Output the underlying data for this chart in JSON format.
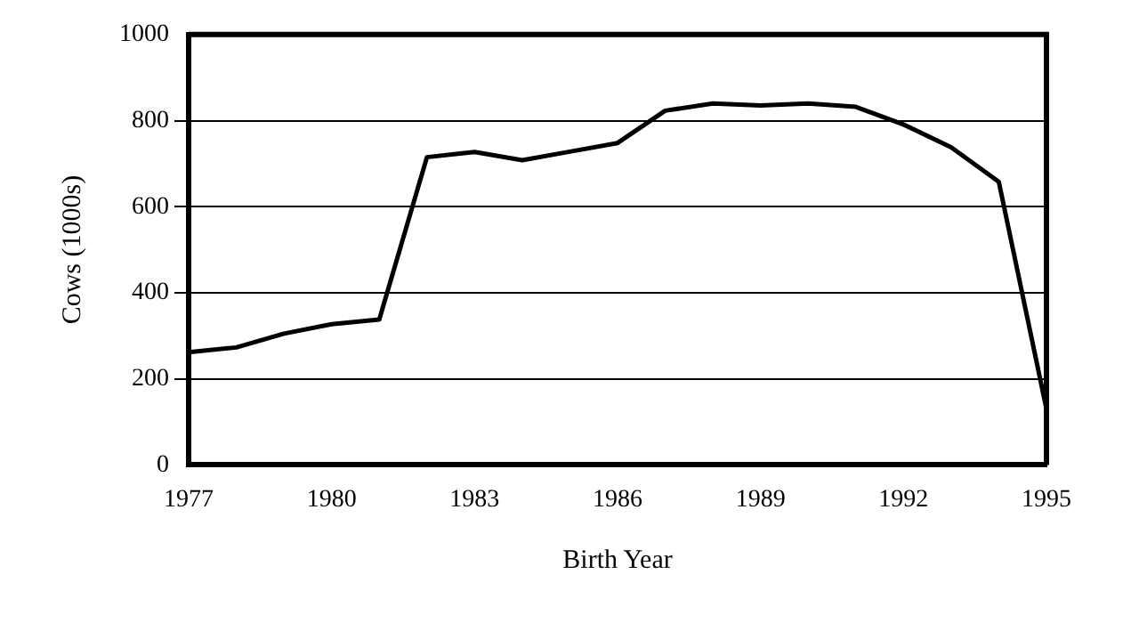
{
  "chart_data": {
    "type": "line",
    "xlabel": "Birth Year",
    "ylabel": "Cows (1000s)",
    "x": [
      1977,
      1978,
      1979,
      1980,
      1981,
      1982,
      1983,
      1984,
      1985,
      1986,
      1987,
      1988,
      1989,
      1990,
      1991,
      1992,
      1993,
      1994,
      1995
    ],
    "series": [
      {
        "color": "#000000",
        "values": [
          262,
          273,
          305,
          327,
          338,
          715,
          727,
          708,
          728,
          748,
          823,
          840,
          835,
          840,
          832,
          791,
          738,
          658,
          130
        ]
      }
    ],
    "xlim": [
      1977,
      1995
    ],
    "xticks": [
      1977,
      1980,
      1983,
      1986,
      1989,
      1992,
      1995
    ],
    "ylim": [
      0,
      1000
    ],
    "yticks": [
      0,
      200,
      400,
      600,
      800,
      1000
    ],
    "grid": "y",
    "legend": false,
    "marker": "none",
    "line_style": "solid"
  }
}
